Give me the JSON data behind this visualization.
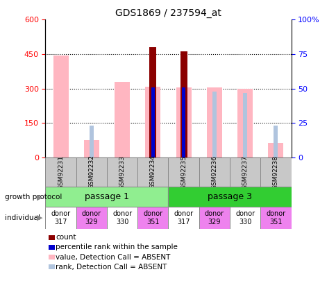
{
  "title": "GDS1869 / 237594_at",
  "samples": [
    "GSM92231",
    "GSM92232",
    "GSM92233",
    "GSM92234",
    "GSM92235",
    "GSM92236",
    "GSM92237",
    "GSM92238"
  ],
  "count_values": [
    null,
    null,
    null,
    480,
    462,
    null,
    null,
    null
  ],
  "value_absent": [
    445,
    75,
    330,
    308,
    305,
    305,
    300,
    62
  ],
  "rank_absent_vals": [
    null,
    23,
    null,
    null,
    null,
    48,
    47,
    23
  ],
  "percentile_rank_vals": [
    null,
    null,
    null,
    51,
    51,
    null,
    null,
    null
  ],
  "ylim_left": [
    0,
    600
  ],
  "ylim_right": [
    0,
    100
  ],
  "yticks_left": [
    0,
    150,
    300,
    450,
    600
  ],
  "yticks_right": [
    0,
    25,
    50,
    75,
    100
  ],
  "ytick_labels_right": [
    "0",
    "25",
    "50",
    "75",
    "100%"
  ],
  "passage1_label": "passage 1",
  "passage3_label": "passage 3",
  "individuals": [
    "donor\n317",
    "donor\n329",
    "donor\n330",
    "donor\n351",
    "donor\n317",
    "donor\n329",
    "donor\n330",
    "donor\n351"
  ],
  "indiv_colors": [
    "white",
    "#EE82EE",
    "white",
    "#EE82EE",
    "white",
    "#EE82EE",
    "white",
    "#EE82EE"
  ],
  "color_count": "#8B0000",
  "color_percentile": "#0000CD",
  "color_value_absent": "#FFB6C1",
  "color_rank_absent": "#B0C4DE",
  "passage1_color": "#90EE90",
  "passage3_color": "#32CD32",
  "growth_protocol_label": "growth protocol",
  "individual_label": "individual",
  "legend_items": [
    {
      "label": "count",
      "color": "#8B0000"
    },
    {
      "label": "percentile rank within the sample",
      "color": "#0000CD"
    },
    {
      "label": "value, Detection Call = ABSENT",
      "color": "#FFB6C1"
    },
    {
      "label": "rank, Detection Call = ABSENT",
      "color": "#B0C4DE"
    }
  ]
}
